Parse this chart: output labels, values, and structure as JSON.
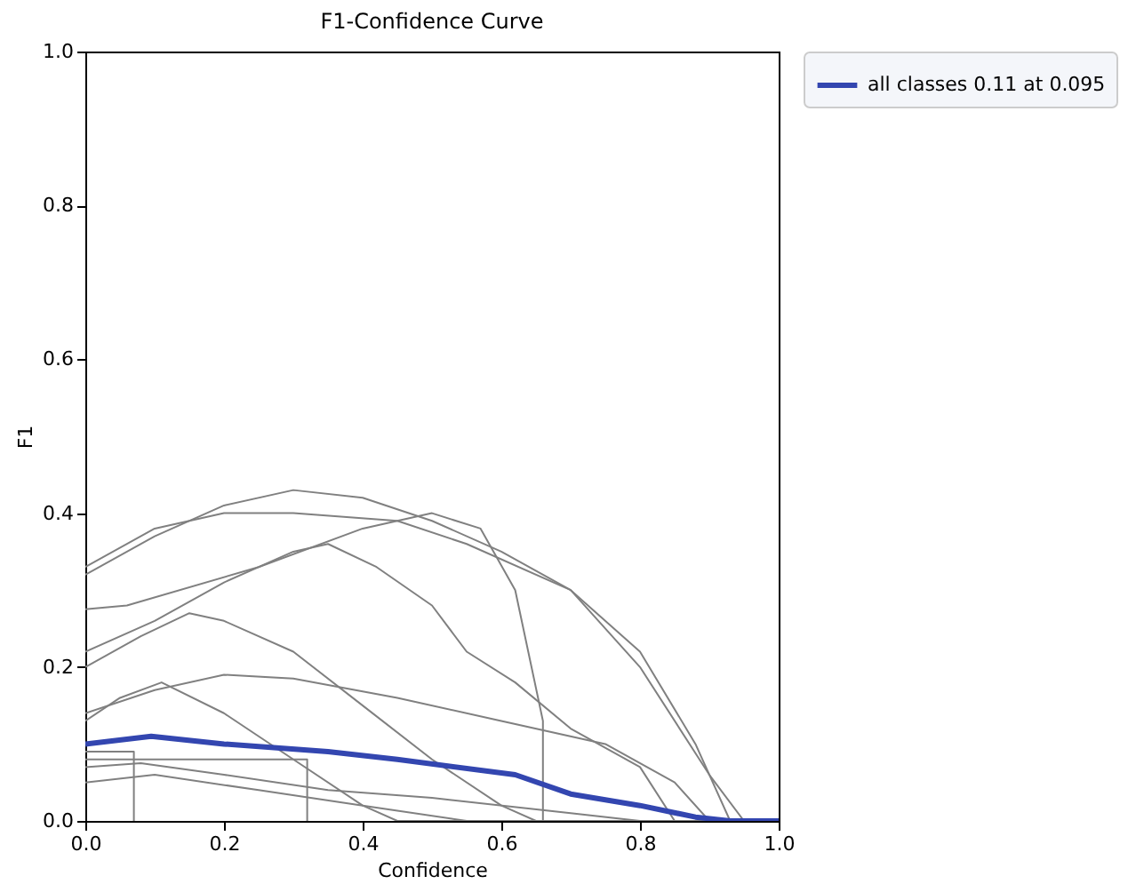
{
  "chart_data": {
    "type": "line",
    "title": "F1-Confidence Curve",
    "xlabel": "Confidence",
    "ylabel": "F1",
    "xlim": [
      0,
      1
    ],
    "ylim": [
      0,
      1
    ],
    "xticks": [
      {
        "value": 0,
        "label": "0.0"
      },
      {
        "value": 0.2,
        "label": "0.2"
      },
      {
        "value": 0.4,
        "label": "0.4"
      },
      {
        "value": 0.6,
        "label": "0.6"
      },
      {
        "value": 0.8,
        "label": "0.8"
      },
      {
        "value": 1,
        "label": "1.0"
      }
    ],
    "yticks": [
      {
        "value": 0,
        "label": "0.0"
      },
      {
        "value": 0.2,
        "label": "0.2"
      },
      {
        "value": 0.4,
        "label": "0.4"
      },
      {
        "value": 0.6,
        "label": "0.6"
      },
      {
        "value": 0.8,
        "label": "0.8"
      },
      {
        "value": 1,
        "label": "1.0"
      }
    ],
    "grid": false,
    "legend": "top right",
    "series": [
      {
        "color": "#808080",
        "x": [
          0,
          0.1,
          0.2,
          0.3,
          0.4,
          0.5,
          0.6,
          0.7,
          0.8,
          0.88,
          0.93,
          1
        ],
        "values": [
          0.32,
          0.37,
          0.41,
          0.43,
          0.42,
          0.39,
          0.35,
          0.3,
          0.22,
          0.1,
          0,
          0
        ]
      },
      {
        "color": "#808080",
        "x": [
          0,
          0.1,
          0.2,
          0.3,
          0.45,
          0.55,
          0.7,
          0.8,
          0.9,
          0.95,
          1
        ],
        "values": [
          0.33,
          0.38,
          0.4,
          0.4,
          0.39,
          0.36,
          0.3,
          0.2,
          0.06,
          0,
          0
        ]
      },
      {
        "color": "#808080",
        "x": [
          0,
          0.06,
          0.25,
          0.4,
          0.5,
          0.57,
          0.62,
          0.66,
          0.66,
          1
        ],
        "values": [
          0.275,
          0.28,
          0.33,
          0.38,
          0.4,
          0.38,
          0.3,
          0.13,
          0,
          0
        ]
      },
      {
        "color": "#808080",
        "x": [
          0,
          0.1,
          0.2,
          0.3,
          0.35,
          0.42,
          0.5,
          0.55,
          0.62,
          0.7,
          0.8,
          0.85,
          1
        ],
        "values": [
          0.22,
          0.26,
          0.31,
          0.35,
          0.36,
          0.33,
          0.28,
          0.22,
          0.18,
          0.12,
          0.07,
          0,
          0
        ]
      },
      {
        "color": "#808080",
        "x": [
          0,
          0.08,
          0.15,
          0.2,
          0.3,
          0.4,
          0.5,
          0.6,
          0.65,
          1
        ],
        "values": [
          0.2,
          0.24,
          0.27,
          0.26,
          0.22,
          0.15,
          0.08,
          0.02,
          0,
          0
        ]
      },
      {
        "color": "#808080",
        "x": [
          0,
          0.1,
          0.2,
          0.3,
          0.45,
          0.6,
          0.75,
          0.85,
          0.9,
          1
        ],
        "values": [
          0.14,
          0.17,
          0.19,
          0.185,
          0.16,
          0.13,
          0.1,
          0.05,
          0,
          0
        ]
      },
      {
        "color": "#808080",
        "x": [
          0,
          0.05,
          0.11,
          0.2,
          0.3,
          0.4,
          0.45,
          1
        ],
        "values": [
          0.13,
          0.16,
          0.18,
          0.14,
          0.08,
          0.02,
          0,
          0
        ]
      },
      {
        "color": "#808080",
        "x": [
          0,
          0.08,
          0.2,
          0.35,
          0.5,
          0.7,
          0.8,
          1
        ],
        "values": [
          0.07,
          0.075,
          0.06,
          0.04,
          0.03,
          0.01,
          0,
          0
        ]
      },
      {
        "color": "#808080",
        "x": [
          0,
          0.1,
          0.25,
          0.4,
          0.55,
          1
        ],
        "values": [
          0.05,
          0.06,
          0.04,
          0.02,
          0,
          0
        ]
      },
      {
        "color": "#808080",
        "x": [
          0,
          0.32,
          0.32
        ],
        "values": [
          0.08,
          0.08,
          0
        ]
      },
      {
        "color": "#808080",
        "x": [
          0,
          0.07,
          0.07
        ],
        "values": [
          0.09,
          0.09,
          0
        ]
      },
      {
        "name": "all classes 0.11 at 0.095",
        "color": "#3346b0",
        "x": [
          0,
          0.095,
          0.2,
          0.35,
          0.45,
          0.62,
          0.7,
          0.8,
          0.88,
          0.93,
          1
        ],
        "values": [
          0.1,
          0.11,
          0.1,
          0.09,
          0.08,
          0.06,
          0.035,
          0.02,
          0.005,
          0,
          0
        ]
      }
    ]
  }
}
